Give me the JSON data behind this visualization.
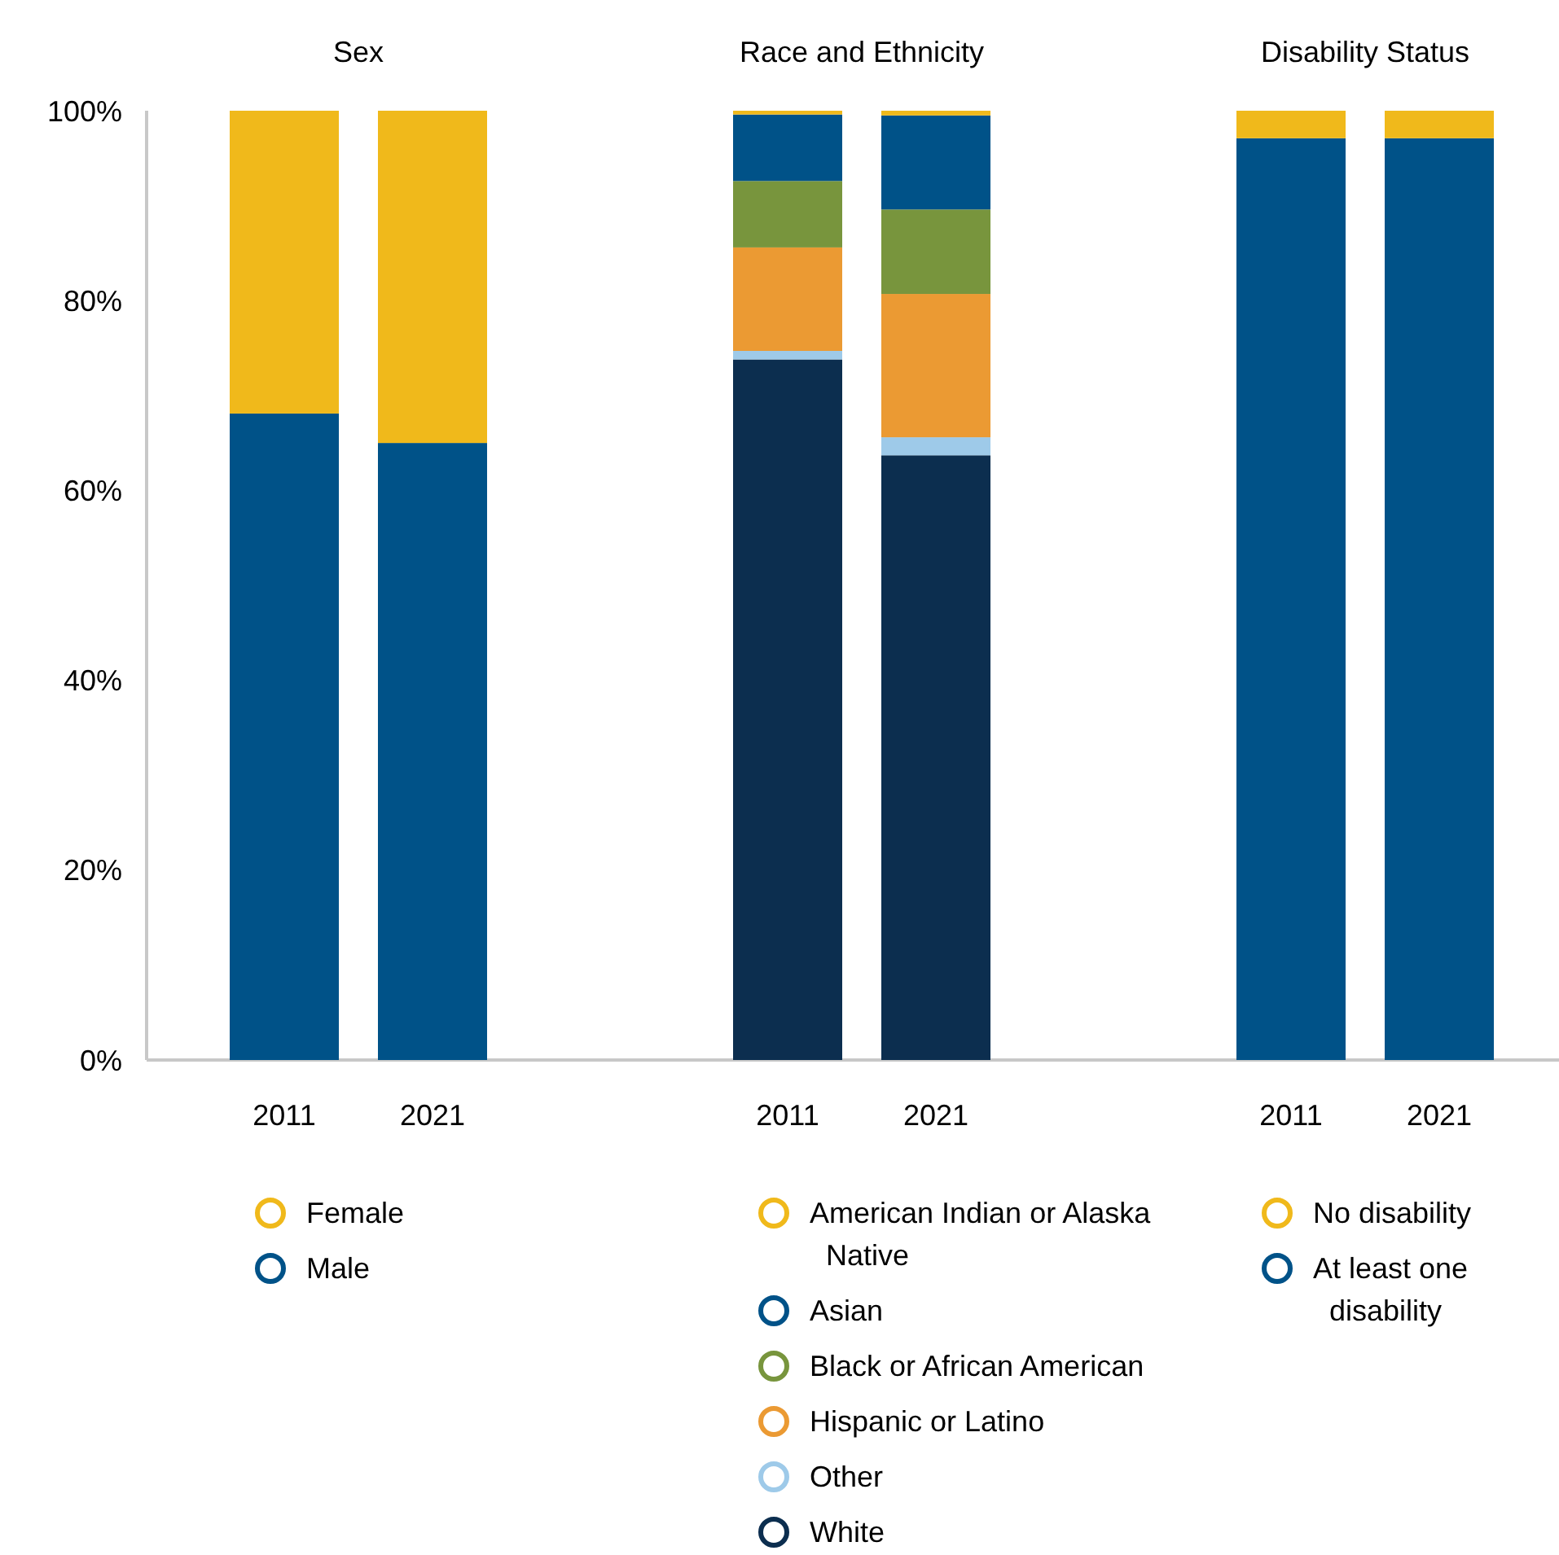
{
  "chart_data": [
    {
      "type": "bar",
      "title": "Sex",
      "categories": [
        "2011",
        "2021"
      ],
      "stacked": true,
      "ylim": [
        0,
        100
      ],
      "yticks": [
        {
          "value": 0,
          "label": "0%"
        },
        {
          "value": 20,
          "label": "20%"
        },
        {
          "value": 40,
          "label": "40%"
        },
        {
          "value": 60,
          "label": "60%"
        },
        {
          "value": 80,
          "label": "80%"
        },
        {
          "value": 100,
          "label": "100%"
        }
      ],
      "legend": "bottom",
      "series": [
        {
          "name": "Male",
          "color": "#005288",
          "values": [
            68.1,
            65.0
          ]
        },
        {
          "name": "Female",
          "color": "#f0b91b",
          "values": [
            31.9,
            35.0
          ]
        }
      ]
    },
    {
      "type": "bar",
      "title": "Race and Ethnicity",
      "categories": [
        "2011",
        "2021"
      ],
      "stacked": true,
      "ylim": [
        0,
        100
      ],
      "tick_labels": "x",
      "legend": "bottom",
      "series": [
        {
          "name": "White",
          "color": "#0c2e4f",
          "values": [
            73.8,
            63.7
          ]
        },
        {
          "name": "Other",
          "color": "#9ecae9",
          "values": [
            0.9,
            1.9
          ]
        },
        {
          "name": "Hispanic or Latino",
          "color": "#eb9a33",
          "values": [
            10.9,
            15.1
          ]
        },
        {
          "name": "Black or African American",
          "color": "#78953d",
          "values": [
            7.0,
            8.9
          ]
        },
        {
          "name": "Asian",
          "color": "#005288",
          "values": [
            7.0,
            9.9
          ]
        },
        {
          "name": "American Indian or Alaska Native",
          "color": "#f0b91b",
          "values": [
            0.4,
            0.5
          ]
        }
      ]
    },
    {
      "type": "bar",
      "title": "Disability Status",
      "categories": [
        "2011",
        "2021"
      ],
      "stacked": true,
      "ylim": [
        0,
        100
      ],
      "tick_labels": "x",
      "legend": "bottom",
      "series": [
        {
          "name": "At least one disability",
          "color": "#005288",
          "values": [
            97.1,
            97.1
          ]
        },
        {
          "name": "No disability",
          "color": "#f0b91b",
          "values": [
            2.9,
            2.9
          ]
        }
      ]
    }
  ]
}
